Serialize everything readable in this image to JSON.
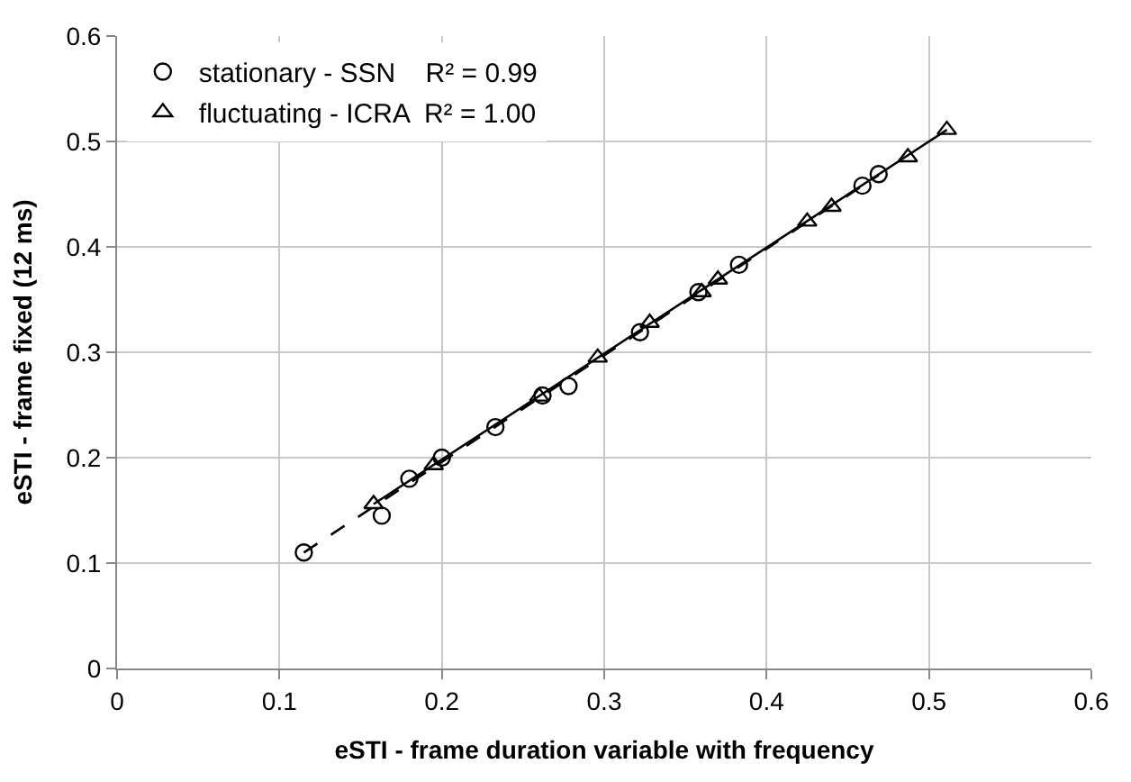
{
  "chart_data": {
    "type": "scatter",
    "xlabel": "eSTI - frame duration variable with frequency",
    "ylabel": "eSTI - frame fixed (12 ms)",
    "xlim": [
      0,
      0.6
    ],
    "ylim": [
      0,
      0.6
    ],
    "xticks": [
      0,
      0.1,
      0.2,
      0.3,
      0.4,
      0.5,
      0.6
    ],
    "yticks": [
      0,
      0.1,
      0.2,
      0.3,
      0.4,
      0.5,
      0.6
    ],
    "grid": true,
    "legend": "top left",
    "series": [
      {
        "name": "stationary - SSN    R² = 0.99",
        "color": "#000000",
        "marker": "circle",
        "x": [
          0.115,
          0.163,
          0.18,
          0.2,
          0.233,
          0.262,
          0.278,
          0.322,
          0.358,
          0.383,
          0.459,
          0.469
        ],
        "values": [
          0.11,
          0.145,
          0.18,
          0.2,
          0.229,
          0.259,
          0.268,
          0.319,
          0.357,
          0.383,
          0.458,
          0.469
        ]
      },
      {
        "name": "fluctuating - ICRA  R² = 1.00",
        "color": "#000000",
        "marker": "triangle",
        "x": [
          0.158,
          0.195,
          0.26,
          0.296,
          0.328,
          0.36,
          0.37,
          0.425,
          0.44,
          0.487,
          0.511
        ],
        "values": [
          0.156,
          0.193,
          0.258,
          0.295,
          0.328,
          0.357,
          0.369,
          0.424,
          0.438,
          0.485,
          0.511
        ]
      },
      {
        "type": "line",
        "color": "#000000",
        "marker": "none",
        "line_style": "dashed",
        "x": [
          0.115,
          0.469
        ],
        "values": [
          0.11,
          0.468
        ]
      },
      {
        "type": "line",
        "color": "#000000",
        "marker": "none",
        "line_style": "solid",
        "x": [
          0.158,
          0.511
        ],
        "values": [
          0.156,
          0.511
        ]
      }
    ]
  }
}
